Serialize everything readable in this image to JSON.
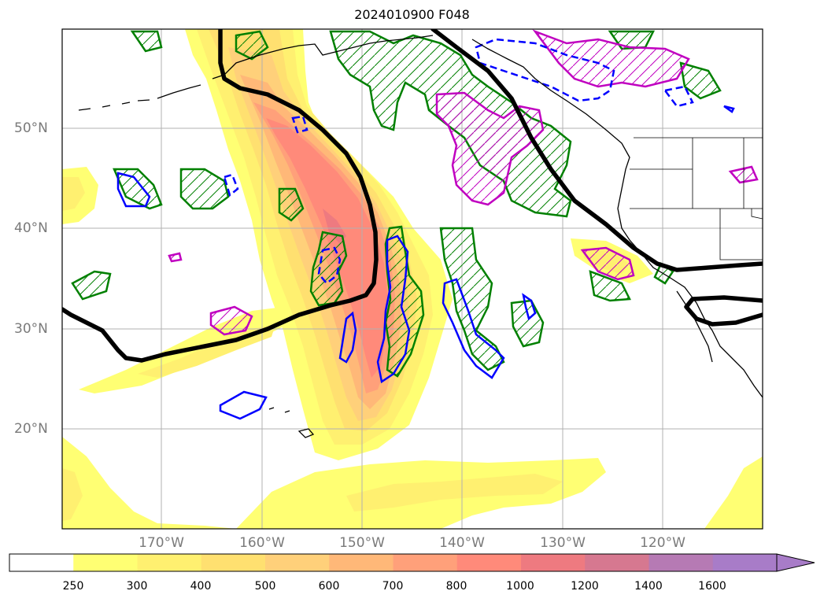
{
  "title": "2024010900 F048",
  "lon_labels": [
    "170°W",
    "160°W",
    "150°W",
    "140°W",
    "130°W",
    "120°W"
  ],
  "lat_labels": [
    "50°N",
    "40°N",
    "30°N",
    "20°N"
  ],
  "colorbar": {
    "ticks": [
      "250",
      "300",
      "400",
      "500",
      "600",
      "700",
      "800",
      "1000",
      "1200",
      "1400",
      "1600"
    ],
    "colors": [
      "#ffffff",
      "#ffff73",
      "#fff070",
      "#ffe070",
      "#ffd07a",
      "#ffb878",
      "#ffa07a",
      "#ff8a7a",
      "#ee7a80",
      "#d67890",
      "#b67ab4",
      "#a87cc8"
    ],
    "extend": "max"
  },
  "colors": {
    "contour_black": "#000000",
    "contour_green": "#008000",
    "contour_blue": "#0000ff",
    "contour_magenta": "#c000c0",
    "grid": "#b0b0b0"
  }
}
